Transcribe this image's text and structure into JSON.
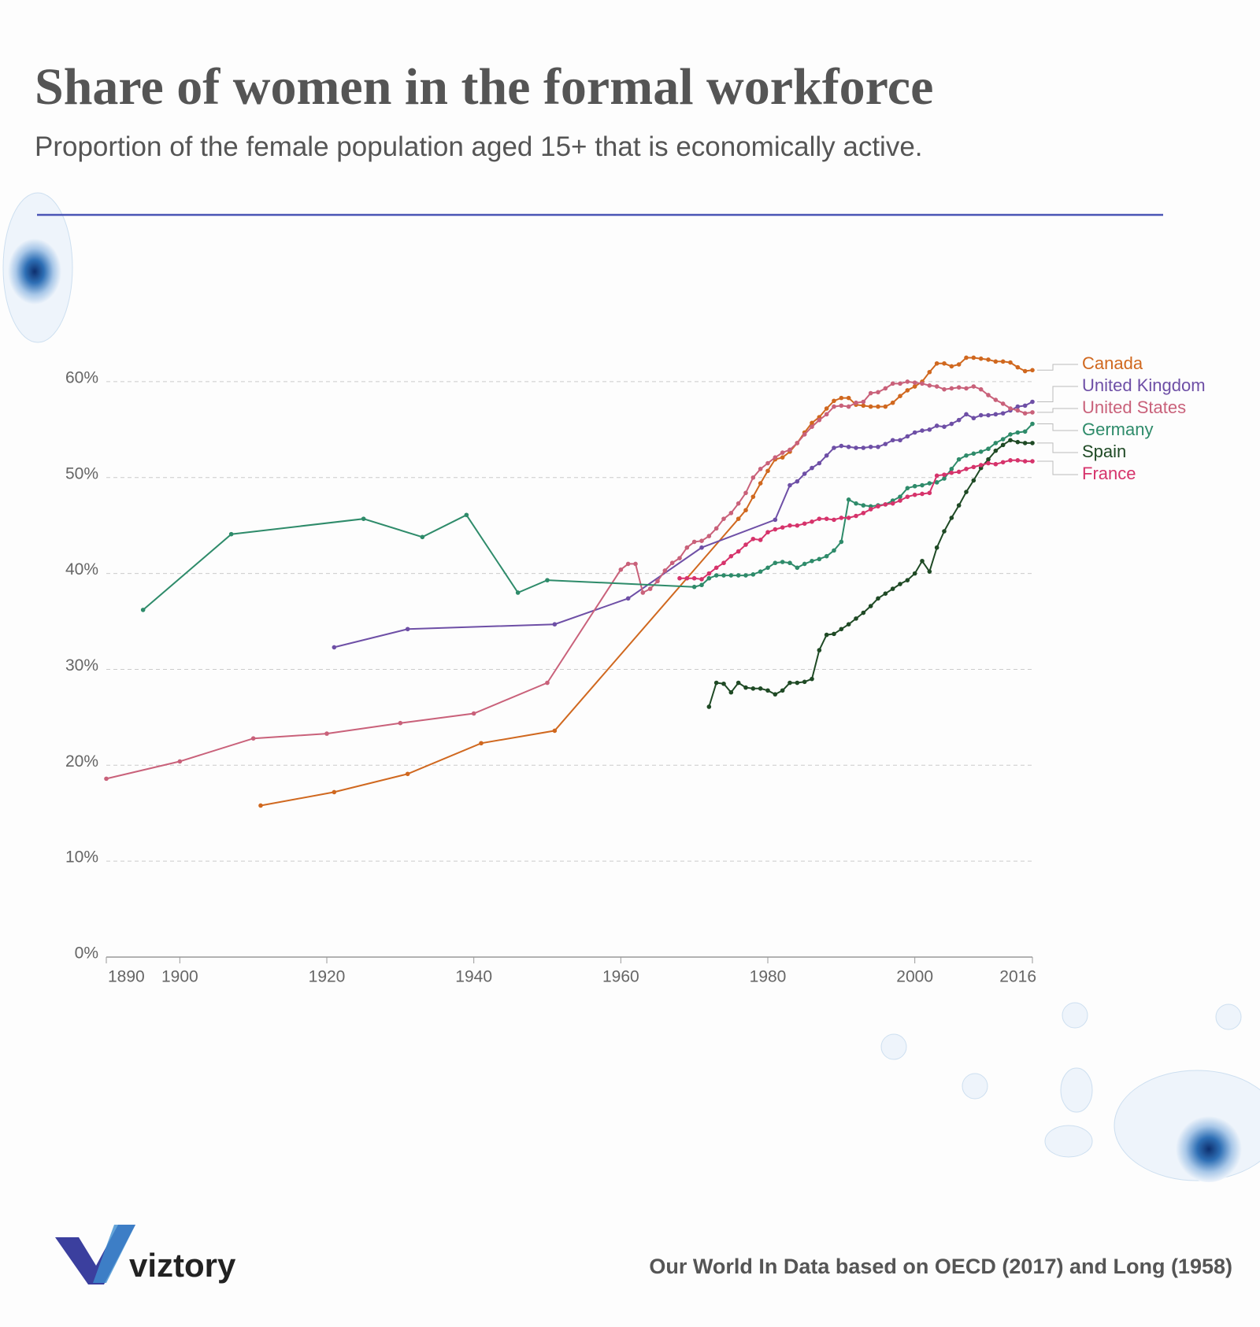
{
  "chart_data": {
    "type": "line",
    "title": "Share of women in the formal workforce",
    "subtitle": "Proportion of the female population aged 15+ that is economically active.",
    "source": "Our World In Data based on OECD (2017) and Long (1958)",
    "xlim": [
      1890,
      2016
    ],
    "xticks": [
      1890,
      1900,
      1920,
      1940,
      1960,
      1980,
      2000,
      2016
    ],
    "ylim": [
      0,
      65
    ],
    "yticks": [
      {
        "value": 0,
        "label": "0%"
      },
      {
        "value": 10,
        "label": "10%"
      },
      {
        "value": 20,
        "label": "20%"
      },
      {
        "value": 30,
        "label": "30%"
      },
      {
        "value": 40,
        "label": "40%"
      },
      {
        "value": 50,
        "label": "50%"
      },
      {
        "value": 60,
        "label": "60%"
      }
    ],
    "grid": true,
    "series": [
      {
        "name": "Canada",
        "color": "#d0681f",
        "x": [
          1911,
          1921,
          1931,
          1941,
          1951,
          1976,
          1977,
          1978,
          1979,
          1980,
          1981,
          1982,
          1983,
          1984,
          1985,
          1986,
          1987,
          1988,
          1989,
          1990,
          1991,
          1992,
          1993,
          1994,
          1995,
          1996,
          1997,
          1998,
          1999,
          2000,
          2001,
          2002,
          2003,
          2004,
          2005,
          2006,
          2007,
          2008,
          2009,
          2010,
          2011,
          2012,
          2013,
          2014,
          2015,
          2016
        ],
        "values": [
          15.8,
          17.2,
          19.1,
          22.3,
          23.6,
          45.7,
          46.6,
          48.0,
          49.4,
          50.7,
          51.9,
          52.1,
          52.7,
          53.6,
          54.7,
          55.7,
          56.3,
          57.2,
          58.0,
          58.3,
          58.3,
          57.6,
          57.5,
          57.4,
          57.4,
          57.4,
          57.8,
          58.5,
          59.1,
          59.5,
          60.0,
          61.0,
          61.9,
          61.9,
          61.6,
          61.8,
          62.5,
          62.5,
          62.4,
          62.3,
          62.1,
          62.1,
          62.0,
          61.5,
          61.1,
          61.2
        ]
      },
      {
        "name": "United Kingdom",
        "color": "#6e4fa6",
        "x": [
          1921,
          1931,
          1951,
          1961,
          1971,
          1981,
          1983,
          1984,
          1985,
          1986,
          1987,
          1988,
          1989,
          1990,
          1991,
          1992,
          1993,
          1994,
          1995,
          1996,
          1997,
          1998,
          1999,
          2000,
          2001,
          2002,
          2003,
          2004,
          2005,
          2006,
          2007,
          2008,
          2009,
          2010,
          2011,
          2012,
          2013,
          2014,
          2015,
          2016
        ],
        "values": [
          32.3,
          34.2,
          34.7,
          37.4,
          42.7,
          45.6,
          49.2,
          49.6,
          50.4,
          51.0,
          51.5,
          52.3,
          53.1,
          53.3,
          53.2,
          53.1,
          53.1,
          53.2,
          53.2,
          53.5,
          53.9,
          53.9,
          54.3,
          54.7,
          54.9,
          55.0,
          55.4,
          55.3,
          55.6,
          56.0,
          56.6,
          56.2,
          56.5,
          56.5,
          56.6,
          56.7,
          57.0,
          57.4,
          57.5,
          57.9
        ]
      },
      {
        "name": "United States",
        "color": "#c9617a",
        "x": [
          1890,
          1900,
          1910,
          1920,
          1930,
          1940,
          1950,
          1960,
          1961,
          1962,
          1963,
          1964,
          1965,
          1966,
          1967,
          1968,
          1969,
          1970,
          1971,
          1972,
          1973,
          1974,
          1975,
          1976,
          1977,
          1978,
          1979,
          1980,
          1981,
          1982,
          1983,
          1984,
          1985,
          1986,
          1987,
          1988,
          1989,
          1990,
          1991,
          1992,
          1993,
          1994,
          1995,
          1996,
          1997,
          1998,
          1999,
          2000,
          2001,
          2002,
          2003,
          2004,
          2005,
          2006,
          2007,
          2008,
          2009,
          2010,
          2011,
          2012,
          2013,
          2014,
          2015,
          2016
        ],
        "values": [
          18.6,
          20.4,
          22.8,
          23.3,
          24.4,
          25.4,
          28.6,
          40.4,
          41.0,
          41.0,
          38.0,
          38.4,
          39.2,
          40.3,
          41.1,
          41.6,
          42.7,
          43.3,
          43.4,
          43.9,
          44.7,
          45.7,
          46.3,
          47.3,
          48.4,
          50.0,
          50.9,
          51.5,
          52.1,
          52.6,
          52.9,
          53.6,
          54.5,
          55.3,
          56.0,
          56.6,
          57.4,
          57.5,
          57.4,
          57.8,
          57.9,
          58.8,
          58.9,
          59.3,
          59.8,
          59.8,
          60.0,
          59.9,
          59.8,
          59.6,
          59.5,
          59.2,
          59.3,
          59.4,
          59.3,
          59.5,
          59.2,
          58.6,
          58.1,
          57.7,
          57.2,
          57.0,
          56.7,
          56.8
        ]
      },
      {
        "name": "Germany",
        "color": "#2e8b6a",
        "x": [
          1895,
          1907,
          1925,
          1933,
          1939,
          1946,
          1950,
          1970,
          1971,
          1972,
          1973,
          1974,
          1975,
          1976,
          1977,
          1978,
          1979,
          1980,
          1981,
          1982,
          1983,
          1984,
          1985,
          1986,
          1987,
          1988,
          1989,
          1990,
          1991,
          1992,
          1993,
          1994,
          1995,
          1996,
          1997,
          1998,
          1999,
          2000,
          2001,
          2002,
          2003,
          2004,
          2005,
          2006,
          2007,
          2008,
          2009,
          2010,
          2011,
          2012,
          2013,
          2014,
          2015,
          2016
        ],
        "values": [
          36.2,
          44.1,
          45.7,
          43.8,
          46.1,
          38.0,
          39.3,
          38.6,
          38.8,
          39.5,
          39.8,
          39.8,
          39.8,
          39.8,
          39.8,
          39.9,
          40.2,
          40.6,
          41.1,
          41.2,
          41.1,
          40.6,
          41.0,
          41.3,
          41.5,
          41.8,
          42.4,
          43.3,
          47.7,
          47.3,
          47.1,
          47.0,
          47.1,
          47.2,
          47.6,
          48.0,
          48.9,
          49.1,
          49.2,
          49.4,
          49.5,
          49.9,
          50.9,
          51.9,
          52.3,
          52.5,
          52.7,
          53.0,
          53.6,
          54.0,
          54.5,
          54.7,
          54.8,
          55.6
        ]
      },
      {
        "name": "Spain",
        "color": "#1f4a25",
        "x": [
          1972,
          1973,
          1974,
          1975,
          1976,
          1977,
          1978,
          1979,
          1980,
          1981,
          1982,
          1983,
          1984,
          1985,
          1986,
          1987,
          1988,
          1989,
          1990,
          1991,
          1992,
          1993,
          1994,
          1995,
          1996,
          1997,
          1998,
          1999,
          2000,
          2001,
          2002,
          2003,
          2004,
          2005,
          2006,
          2007,
          2008,
          2009,
          2010,
          2011,
          2012,
          2013,
          2014,
          2015,
          2016
        ],
        "values": [
          26.1,
          28.6,
          28.5,
          27.6,
          28.6,
          28.1,
          28.0,
          28.0,
          27.8,
          27.4,
          27.8,
          28.6,
          28.6,
          28.7,
          29.0,
          32.0,
          33.6,
          33.7,
          34.2,
          34.7,
          35.3,
          35.9,
          36.6,
          37.4,
          37.9,
          38.4,
          38.9,
          39.3,
          40.0,
          41.3,
          40.2,
          42.7,
          44.4,
          45.8,
          47.1,
          48.5,
          49.7,
          51.0,
          51.9,
          52.8,
          53.4,
          53.9,
          53.7,
          53.6,
          53.6
        ]
      },
      {
        "name": "France",
        "color": "#d6336b",
        "x": [
          1968,
          1969,
          1970,
          1971,
          1972,
          1973,
          1974,
          1975,
          1976,
          1977,
          1978,
          1979,
          1980,
          1981,
          1982,
          1983,
          1984,
          1985,
          1986,
          1987,
          1988,
          1989,
          1990,
          1991,
          1992,
          1993,
          1994,
          1995,
          1996,
          1997,
          1998,
          1999,
          2000,
          2001,
          2002,
          2003,
          2004,
          2005,
          2006,
          2007,
          2008,
          2009,
          2010,
          2011,
          2012,
          2013,
          2014,
          2015,
          2016
        ],
        "values": [
          39.5,
          39.5,
          39.5,
          39.4,
          40.0,
          40.6,
          41.1,
          41.8,
          42.3,
          43.0,
          43.6,
          43.5,
          44.3,
          44.6,
          44.8,
          45.0,
          45.0,
          45.2,
          45.4,
          45.7,
          45.7,
          45.6,
          45.8,
          45.8,
          46.0,
          46.3,
          46.7,
          47.0,
          47.2,
          47.3,
          47.6,
          48.0,
          48.2,
          48.3,
          48.4,
          50.2,
          50.3,
          50.5,
          50.6,
          50.9,
          51.1,
          51.3,
          51.5,
          51.4,
          51.6,
          51.8,
          51.8,
          51.7,
          51.7
        ]
      }
    ]
  },
  "brand": "viztory"
}
